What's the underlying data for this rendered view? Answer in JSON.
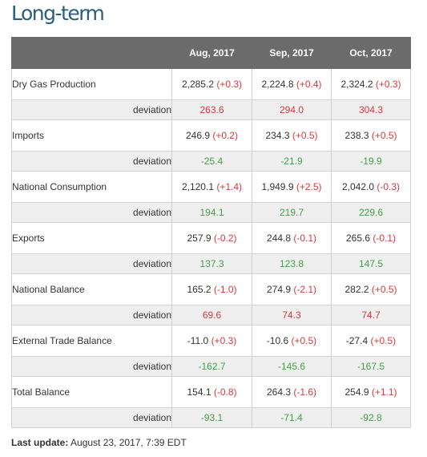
{
  "title": "Long-term",
  "columns": [
    "Aug, 2017",
    "Sep, 2017",
    "Oct, 2017"
  ],
  "deviation_label": "deviation",
  "rows": [
    {
      "label": "Dry Gas Production",
      "values": [
        {
          "value": "2,285.2",
          "change": "(+0.3)"
        },
        {
          "value": "2,224.8",
          "change": "(+0.4)"
        },
        {
          "value": "2,324.2",
          "change": "(+0.3)"
        }
      ],
      "deviation": [
        "263.6",
        "294.0",
        "304.3"
      ],
      "deviation_color": "red"
    },
    {
      "label": "Imports",
      "values": [
        {
          "value": "246.9",
          "change": "(+0.2)"
        },
        {
          "value": "234.3",
          "change": "(+0.5)"
        },
        {
          "value": "238.3",
          "change": "(+0.5)"
        }
      ],
      "deviation": [
        "-25.4",
        "-21.9",
        "-19.9"
      ],
      "deviation_color": "green"
    },
    {
      "label": "National Consumption",
      "values": [
        {
          "value": "2,120.1",
          "change": "(+1.4)"
        },
        {
          "value": "1,949.9",
          "change": "(+2.5)"
        },
        {
          "value": "2,042.0",
          "change": "(-0.3)"
        }
      ],
      "deviation": [
        "194.1",
        "219.7",
        "229.6"
      ],
      "deviation_color": "green"
    },
    {
      "label": "Exports",
      "values": [
        {
          "value": "257.9",
          "change": "(-0.2)"
        },
        {
          "value": "244.8",
          "change": "(-0.1)"
        },
        {
          "value": "265.6",
          "change": "(-0.1)"
        }
      ],
      "deviation": [
        "137.3",
        "123.8",
        "147.5"
      ],
      "deviation_color": "green"
    },
    {
      "label": "National Balance",
      "values": [
        {
          "value": "165.2",
          "change": "(-1.0)"
        },
        {
          "value": "274.9",
          "change": "(-2.1)"
        },
        {
          "value": "282.2",
          "change": "(+0.5)"
        }
      ],
      "deviation": [
        "69.6",
        "74.3",
        "74.7"
      ],
      "deviation_color": "red"
    },
    {
      "label": "External Trade Balance",
      "values": [
        {
          "value": "-11.0",
          "change": "(+0.3)"
        },
        {
          "value": "-10.6",
          "change": "(+0.5)"
        },
        {
          "value": "-27.4",
          "change": "(+0.5)"
        }
      ],
      "deviation": [
        "-162.7",
        "-145.6",
        "-167.5"
      ],
      "deviation_color": "green"
    },
    {
      "label": "Total Balance",
      "values": [
        {
          "value": "154.1",
          "change": "(-0.8)"
        },
        {
          "value": "264.3",
          "change": "(-1.6)"
        },
        {
          "value": "254.9",
          "change": "(+1.1)"
        }
      ],
      "deviation": [
        "-93.1",
        "-71.4",
        "-92.8"
      ],
      "deviation_color": "green"
    }
  ],
  "footer": {
    "label": "Last update:",
    "value": "August 23, 2017, 7:39 EDT"
  },
  "colors": {
    "header_bg": "#6b6b6b",
    "title": "#2b5d7c",
    "change": "#d23c3c",
    "deviation_red": "#d23c3c",
    "deviation_green": "#46a046"
  }
}
